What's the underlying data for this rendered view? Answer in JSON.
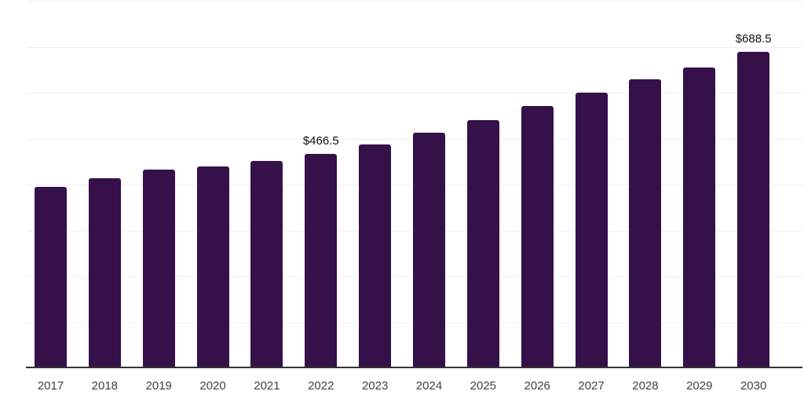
{
  "chart_data": {
    "type": "bar",
    "title": "",
    "categories": [
      "2017",
      "2018",
      "2019",
      "2020",
      "2021",
      "2022",
      "2023",
      "2024",
      "2025",
      "2026",
      "2027",
      "2028",
      "2029",
      "2030"
    ],
    "values": [
      395.0,
      413.5,
      432.0,
      438.5,
      451.0,
      466.5,
      488.0,
      512.5,
      539.5,
      571.0,
      600.0,
      628.5,
      655.5,
      688.5
    ],
    "data_labels": [
      "",
      "",
      "",
      "",
      "",
      "$466.5",
      "",
      "",
      "",
      "",
      "",
      "",
      "",
      "$688.5"
    ],
    "labeled_points": [
      {
        "category": "2022",
        "label": "$466.5",
        "value": 466.5
      },
      {
        "category": "2030",
        "label": "$688.5",
        "value": 688.5
      }
    ],
    "xlabel": "",
    "ylabel": "",
    "ylim": [
      0,
      800
    ],
    "gridline_interval": 100,
    "grid": "horizontal",
    "legend_position": "none",
    "value_prefix": "$"
  },
  "style": {
    "bar_color": "#351049",
    "gridline_color": "#f0f0f0",
    "axis_line_color": "#333333",
    "tick_label_color": "#404040",
    "data_label_color": "#111111",
    "background_color": "#ffffff"
  }
}
